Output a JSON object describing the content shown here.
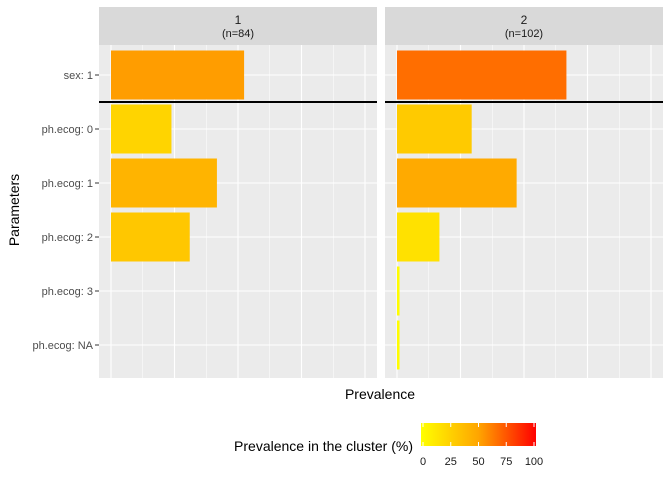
{
  "chart_data": {
    "type": "bar",
    "orientation": "horizontal",
    "xlabel": "Prevalence",
    "ylabel": "Parameters",
    "categories": [
      "sex: 1",
      "ph.ecog: 0",
      "ph.ecog: 1",
      "ph.ecog: 2",
      "ph.ecog: 3",
      "ph.ecog: NA"
    ],
    "xlim": [
      0,
      100
    ],
    "grid": true,
    "facets": [
      {
        "label": "1",
        "sublabel": "(n=84)",
        "values": [
          52.4,
          23.8,
          41.7,
          31.0,
          0,
          0
        ]
      },
      {
        "label": "2",
        "sublabel": "(n=102)",
        "values": [
          66.7,
          29.4,
          47.1,
          16.7,
          1.0,
          1.0
        ]
      }
    ],
    "separator_after_category": "sex: 1",
    "legend": {
      "title": "Prevalence in the cluster (%)",
      "position": "bottom",
      "ticks": [
        "0",
        "25",
        "50",
        "75",
        "100"
      ],
      "range": [
        0,
        100
      ],
      "colors": [
        "#ffff00",
        "#ffa500",
        "#ff0000"
      ]
    }
  }
}
